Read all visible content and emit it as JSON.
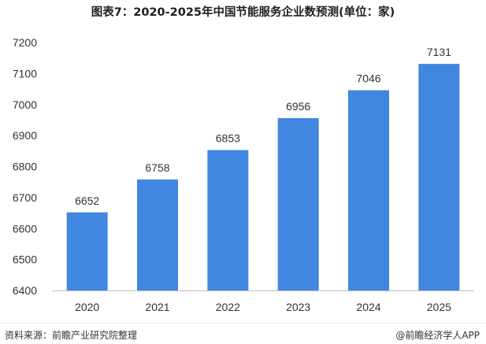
{
  "header": {
    "title": "图表7：2020-2025年中国节能服务企业数预测(单位：家)"
  },
  "footer": {
    "source": "资料来源：前瞻产业研究院整理",
    "publisher": "@前瞻经济学人APP"
  },
  "colors": {
    "bar": "#4186e0",
    "axis": "#bfbfbf"
  },
  "chart_data": {
    "type": "bar",
    "title": "图表7：2020-2025年中国节能服务企业数预测(单位：家)",
    "categories": [
      "2020",
      "2021",
      "2022",
      "2023",
      "2024",
      "2025"
    ],
    "values": [
      6652,
      6758,
      6853,
      6956,
      7046,
      7131
    ],
    "ylim": [
      6400,
      7200
    ],
    "yticks": [
      6400,
      6500,
      6600,
      6700,
      6800,
      6900,
      7000,
      7100,
      7200
    ],
    "grid": false,
    "data_labels": true
  }
}
